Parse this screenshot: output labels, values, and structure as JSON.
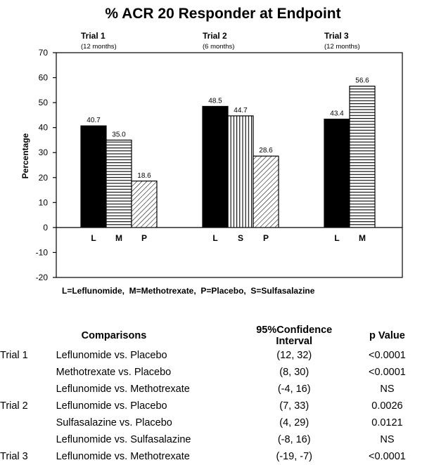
{
  "chart_data": {
    "type": "bar",
    "title": "% ACR 20 Responder at Endpoint",
    "ylabel": "Percentage",
    "xlabel": "",
    "ylim": [
      -20,
      70
    ],
    "yticks": [
      -20,
      -10,
      0,
      10,
      20,
      30,
      40,
      50,
      60,
      70
    ],
    "grid": false,
    "groups": [
      {
        "name": "Trial 1",
        "subtitle": "(12 months)",
        "bars": [
          {
            "label": "L",
            "value": 40.7,
            "value_label": "40.7",
            "pattern": "solid"
          },
          {
            "label": "M",
            "value": 35.0,
            "value_label": "35.0",
            "pattern": "horizontal"
          },
          {
            "label": "P",
            "value": 18.6,
            "value_label": "18.6",
            "pattern": "diagonal"
          }
        ]
      },
      {
        "name": "Trial 2",
        "subtitle": "(6 months)",
        "bars": [
          {
            "label": "L",
            "value": 48.5,
            "value_label": "48.5",
            "pattern": "solid"
          },
          {
            "label": "S",
            "value": 44.7,
            "value_label": "44.7",
            "pattern": "vertical"
          },
          {
            "label": "P",
            "value": 28.6,
            "value_label": "28.6",
            "pattern": "diagonal"
          }
        ]
      },
      {
        "name": "Trial 3",
        "subtitle": "(12 months)",
        "bars": [
          {
            "label": "L",
            "value": 43.4,
            "value_label": "43.4",
            "pattern": "solid"
          },
          {
            "label": "M",
            "value": 56.6,
            "value_label": "56.6",
            "pattern": "horizontal"
          }
        ]
      }
    ],
    "legend": "L=Leflunomide,  M=Methotrexate,  P=Placebo,  S=Sulfasalazine"
  },
  "table": {
    "headers": [
      "Comparisons",
      "95%Confidence Interval",
      "p Value"
    ],
    "rows": [
      {
        "trial": "Trial 1",
        "comparison": "Leflunomide vs. Placebo",
        "ci": "(12, 32)",
        "p": "<0.0001"
      },
      {
        "trial": "",
        "comparison": "Methotrexate vs. Placebo",
        "ci": "(8, 30)",
        "p": "<0.0001"
      },
      {
        "trial": "",
        "comparison": "Leflunomide vs. Methotrexate",
        "ci": "(-4, 16)",
        "p": "NS"
      },
      {
        "trial": "Trial 2",
        "comparison": "Leflunomide vs. Placebo",
        "ci": "(7, 33)",
        "p": "0.0026"
      },
      {
        "trial": "",
        "comparison": "Sulfasalazine vs. Placebo",
        "ci": "(4, 29)",
        "p": "0.0121"
      },
      {
        "trial": "",
        "comparison": "Leflunomide vs. Sulfasalazine",
        "ci": "(-8, 16)",
        "p": "NS"
      },
      {
        "trial": "Trial 3",
        "comparison": "Leflunomide vs. Methotrexate",
        "ci": "(-19, -7)",
        "p": "<0.0001"
      }
    ]
  }
}
